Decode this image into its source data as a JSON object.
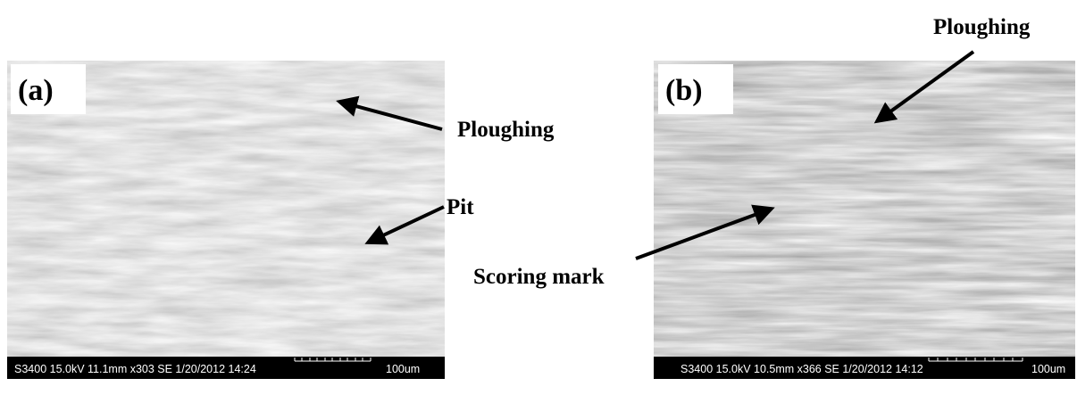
{
  "panels": [
    {
      "label": "(a)",
      "info": "S3400 15.0kV 11.1mm x303 SE 1/20/2012 14:24",
      "scale": "100um",
      "annotations": [
        "Ploughing",
        "Pit"
      ]
    },
    {
      "label": "(b)",
      "info": "S3400 15.0kV 10.5mm x366 SE 1/20/2012 14:12",
      "scale": "100um",
      "annotations": [
        "Ploughing",
        "Scoring mark"
      ]
    }
  ]
}
